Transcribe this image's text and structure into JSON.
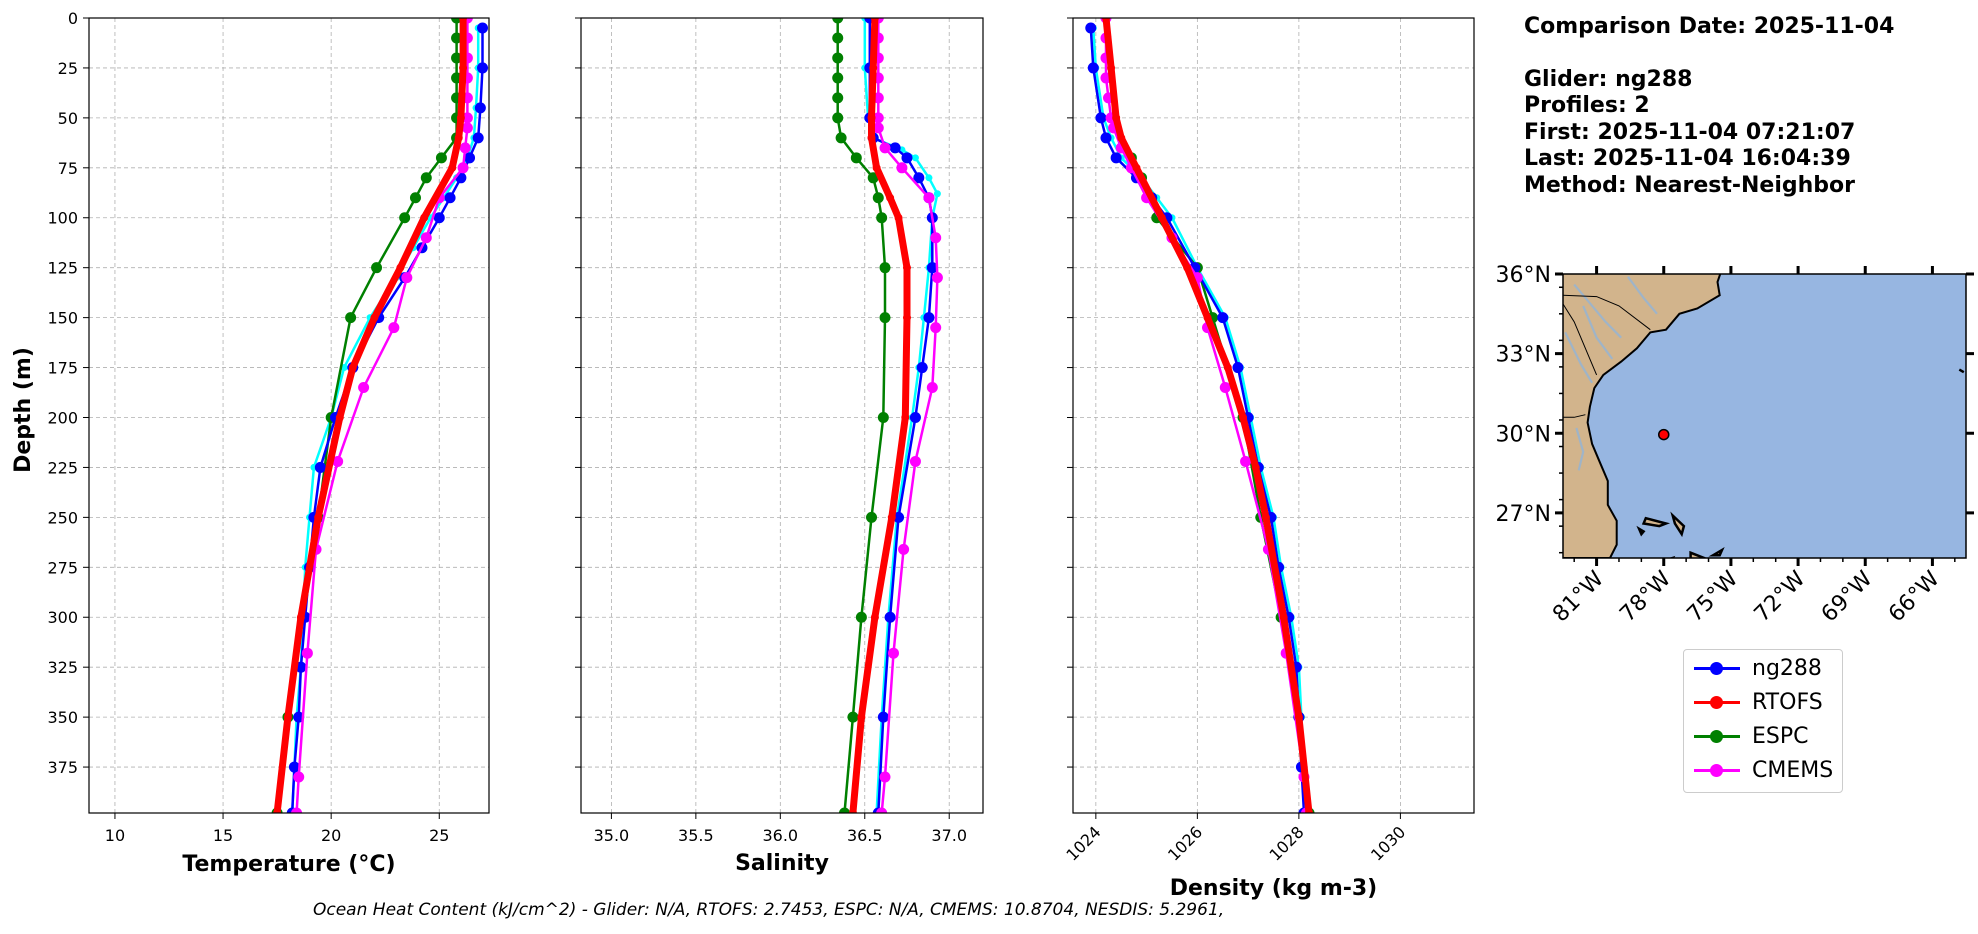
{
  "info": {
    "comparison_date": "Comparison Date: 2025-11-04",
    "glider": "Glider: ng288",
    "profiles": "Profiles: 2",
    "first": "First: 2025-11-04 07:21:07",
    "last": "Last: 2025-11-04 16:04:39",
    "method": "Method: Nearest-Neighbor"
  },
  "footer": "Ocean Heat Content (kJ/cm^2) - Glider: N/A,  RTOFS: 2.7453,  ESPC: N/A,  CMEMS: 10.8704,  NESDIS: 5.2961,",
  "legend": [
    {
      "label": "ng288",
      "color": "#0000ff"
    },
    {
      "label": "RTOFS",
      "color": "#ff0000"
    },
    {
      "label": "ESPC",
      "color": "#008000"
    },
    {
      "label": "CMEMS",
      "color": "#ff00ff"
    }
  ],
  "colors": {
    "glider": "#0000ff",
    "glider_alt": "#00ffff",
    "rtofs": "#ff0000",
    "espc": "#008000",
    "cmems": "#ff00ff",
    "ocean": "#97b6e1",
    "land": "#d2b48c",
    "rivers": "#9fb4c8",
    "grid": "#b0b0b0"
  },
  "chart_data": [
    {
      "type": "line",
      "xlabel": "Temperature (°C)",
      "ylabel": "Depth (m)",
      "xlim": [
        8.8,
        27.3
      ],
      "ylim": [
        398,
        0
      ],
      "y_inverted": true,
      "xticks": [
        10,
        15,
        20,
        25
      ],
      "yticks": [
        0,
        25,
        50,
        75,
        100,
        125,
        150,
        175,
        200,
        225,
        250,
        275,
        300,
        325,
        350,
        375
      ],
      "grid": true,
      "series": [
        {
          "name": "ng288",
          "profiles": [
            {
              "depth": [
                5,
                25,
                45,
                60,
                70,
                80,
                90,
                100,
                115,
                130,
                150,
                175,
                200,
                225,
                250,
                275,
                300,
                325,
                350,
                375,
                398
              ],
              "values": [
                27.0,
                27.0,
                26.9,
                26.8,
                26.4,
                26.0,
                25.5,
                25.0,
                24.2,
                23.4,
                22.2,
                21.0,
                20.2,
                19.5,
                19.2,
                19.0,
                18.8,
                18.6,
                18.5,
                18.3,
                18.2
              ]
            },
            {
              "depth": [
                5,
                25,
                45,
                60,
                70,
                80,
                90,
                100,
                115,
                130,
                150,
                175,
                200,
                225,
                250,
                275,
                300,
                325,
                350,
                375,
                398
              ],
              "values": [
                26.8,
                26.8,
                26.7,
                26.6,
                26.3,
                25.8,
                25.2,
                24.6,
                23.8,
                23.0,
                21.8,
                20.6,
                20.0,
                19.2,
                19.0,
                18.8,
                18.7,
                18.6,
                18.4,
                18.3,
                18.2
              ]
            }
          ]
        },
        {
          "name": "RTOFS",
          "depth": [
            0,
            25,
            50,
            60,
            75,
            100,
            125,
            150,
            175,
            200,
            250,
            300,
            350,
            398
          ],
          "values": [
            26.1,
            26.1,
            26.0,
            25.9,
            25.6,
            24.3,
            23.2,
            22.0,
            21.0,
            20.4,
            19.4,
            18.6,
            18.0,
            17.5
          ]
        },
        {
          "name": "ESPC",
          "depth": [
            0,
            10,
            20,
            30,
            40,
            50,
            60,
            70,
            80,
            90,
            100,
            125,
            150,
            200,
            250,
            300,
            350,
            398
          ],
          "values": [
            25.8,
            25.8,
            25.8,
            25.8,
            25.8,
            25.8,
            25.8,
            25.1,
            24.4,
            23.9,
            23.4,
            22.1,
            20.9,
            20.0,
            19.4,
            18.7,
            18.0,
            17.5
          ]
        },
        {
          "name": "CMEMS",
          "depth": [
            0,
            10,
            20,
            30,
            40,
            50,
            55,
            65,
            75,
            90,
            110,
            130,
            155,
            185,
            222,
            266,
            318,
            380,
            398
          ],
          "values": [
            26.3,
            26.3,
            26.3,
            26.3,
            26.3,
            26.3,
            26.3,
            26.2,
            26.1,
            25.0,
            24.4,
            23.5,
            22.9,
            21.5,
            20.3,
            19.3,
            18.9,
            18.5,
            18.4
          ]
        }
      ]
    },
    {
      "type": "line",
      "xlabel": "Salinity",
      "xlim": [
        34.82,
        37.2
      ],
      "ylim": [
        398,
        0
      ],
      "y_inverted": true,
      "xticks": [
        35.0,
        35.5,
        36.0,
        36.5,
        37.0
      ],
      "grid": true,
      "series": [
        {
          "name": "ng288",
          "profiles": [
            {
              "depth": [
                0,
                25,
                50,
                60,
                65,
                70,
                80,
                90,
                100,
                125,
                150,
                175,
                200,
                250,
                300,
                350,
                398
              ],
              "values": [
                36.53,
                36.53,
                36.53,
                36.55,
                36.68,
                36.75,
                36.82,
                36.88,
                36.9,
                36.9,
                36.88,
                36.84,
                36.8,
                36.7,
                36.65,
                36.61,
                36.58
              ]
            },
            {
              "depth": [
                0,
                25,
                50,
                60,
                66,
                70,
                80,
                88,
                100,
                125,
                150,
                175,
                200,
                250,
                300,
                350,
                398
              ],
              "values": [
                36.5,
                36.5,
                36.52,
                36.55,
                36.72,
                36.8,
                36.88,
                36.93,
                36.9,
                36.88,
                36.85,
                36.82,
                36.78,
                36.69,
                36.64,
                36.6,
                36.57
              ]
            }
          ]
        },
        {
          "name": "RTOFS",
          "depth": [
            0,
            25,
            50,
            60,
            75,
            90,
            100,
            125,
            150,
            200,
            250,
            300,
            350,
            398
          ],
          "values": [
            36.56,
            36.55,
            36.54,
            36.54,
            36.57,
            36.65,
            36.7,
            36.75,
            36.75,
            36.74,
            36.66,
            36.56,
            36.48,
            36.43
          ]
        },
        {
          "name": "ESPC",
          "depth": [
            0,
            10,
            20,
            30,
            40,
            50,
            60,
            70,
            80,
            90,
            100,
            125,
            150,
            200,
            250,
            300,
            350,
            398
          ],
          "values": [
            36.34,
            36.34,
            36.34,
            36.34,
            36.34,
            36.34,
            36.36,
            36.45,
            36.55,
            36.58,
            36.6,
            36.62,
            36.62,
            36.61,
            36.54,
            36.48,
            36.43,
            36.38
          ]
        },
        {
          "name": "CMEMS",
          "depth": [
            0,
            10,
            20,
            30,
            40,
            50,
            55,
            65,
            75,
            90,
            110,
            130,
            155,
            185,
            222,
            266,
            318,
            380,
            398
          ],
          "values": [
            36.58,
            36.58,
            36.58,
            36.58,
            36.58,
            36.58,
            36.58,
            36.62,
            36.72,
            36.88,
            36.92,
            36.93,
            36.92,
            36.9,
            36.8,
            36.73,
            36.67,
            36.62,
            36.6
          ]
        }
      ]
    },
    {
      "type": "line",
      "xlabel": "Density (kg m-3)",
      "xlim": [
        1023.55,
        1031.45
      ],
      "ylim": [
        398,
        0
      ],
      "y_inverted": true,
      "xticks": [
        1024,
        1026,
        1028,
        1030
      ],
      "grid": true,
      "series": [
        {
          "name": "ng288",
          "profiles": [
            {
              "depth": [
                5,
                25,
                50,
                60,
                70,
                80,
                90,
                100,
                125,
                150,
                175,
                200,
                225,
                250,
                275,
                300,
                325,
                350,
                375,
                398
              ],
              "values": [
                1023.9,
                1023.95,
                1024.1,
                1024.2,
                1024.4,
                1024.8,
                1025.1,
                1025.4,
                1025.95,
                1026.5,
                1026.8,
                1027.0,
                1027.2,
                1027.45,
                1027.6,
                1027.8,
                1027.95,
                1028.0,
                1028.05,
                1028.1
              ]
            },
            {
              "depth": [
                5,
                25,
                50,
                60,
                70,
                80,
                90,
                100,
                125,
                150,
                175,
                200,
                225,
                250,
                275,
                300,
                325,
                350,
                375,
                398
              ],
              "values": [
                1023.95,
                1024.0,
                1024.15,
                1024.3,
                1024.5,
                1024.9,
                1025.2,
                1025.5,
                1026.0,
                1026.55,
                1026.85,
                1027.05,
                1027.25,
                1027.5,
                1027.65,
                1027.85,
                1028.0,
                1028.05,
                1028.1,
                1028.15
              ]
            }
          ]
        },
        {
          "name": "RTOFS",
          "depth": [
            0,
            25,
            50,
            60,
            75,
            100,
            125,
            150,
            175,
            200,
            225,
            250,
            300,
            350,
            398
          ],
          "values": [
            1024.2,
            1024.3,
            1024.4,
            1024.5,
            1024.8,
            1025.3,
            1025.8,
            1026.2,
            1026.6,
            1026.9,
            1027.15,
            1027.35,
            1027.7,
            1028.0,
            1028.2
          ]
        },
        {
          "name": "ESPC",
          "depth": [
            70,
            80,
            90,
            100,
            125,
            150,
            200,
            250,
            300,
            350,
            398
          ],
          "values": [
            1024.7,
            1024.9,
            1025.1,
            1025.2,
            1026.0,
            1026.3,
            1026.9,
            1027.25,
            1027.65,
            1028.0,
            1028.2
          ]
        },
        {
          "name": "CMEMS",
          "depth": [
            0,
            10,
            20,
            30,
            40,
            50,
            55,
            65,
            75,
            90,
            110,
            130,
            155,
            185,
            222,
            266,
            318,
            380,
            398
          ],
          "values": [
            1024.2,
            1024.2,
            1024.2,
            1024.2,
            1024.25,
            1024.3,
            1024.35,
            1024.5,
            1024.7,
            1025.0,
            1025.5,
            1026.0,
            1026.2,
            1026.55,
            1026.95,
            1027.4,
            1027.75,
            1028.1,
            1028.15
          ]
        }
      ]
    },
    {
      "type": "map",
      "lon_range": [
        -82.5,
        -64.5
      ],
      "lat_range": [
        25.3,
        36.0
      ],
      "xtick_labels": [
        "81°W",
        "78°W",
        "75°W",
        "72°W",
        "69°W",
        "66°W"
      ],
      "ytick_labels": [
        "36°N",
        "33°N",
        "30°N",
        "27°N"
      ],
      "glider_position": {
        "lon": -78.0,
        "lat": 29.95
      }
    }
  ]
}
